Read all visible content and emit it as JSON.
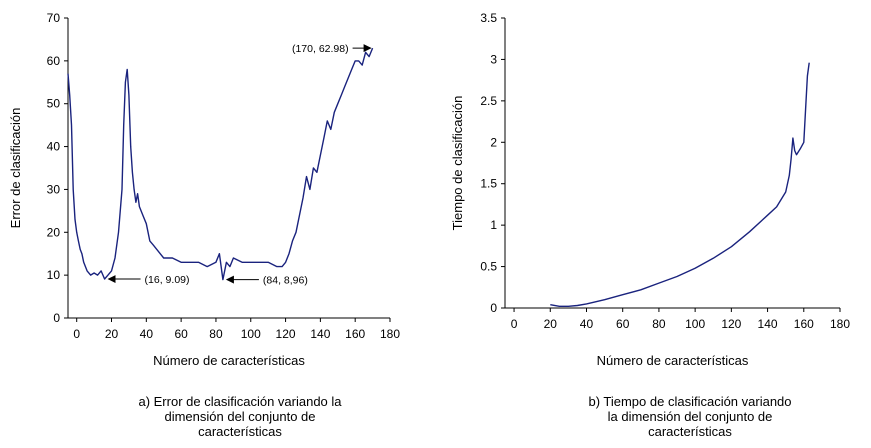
{
  "chart_data": [
    {
      "type": "line",
      "title": "",
      "xlabel": "Número de características",
      "ylabel": "Error de clasificación",
      "xlim": [
        -5,
        180
      ],
      "ylim": [
        0,
        70
      ],
      "xticks": [
        0,
        20,
        40,
        60,
        80,
        100,
        120,
        140,
        160,
        180
      ],
      "yticks": [
        0,
        10,
        20,
        30,
        40,
        50,
        60,
        70
      ],
      "grid": false,
      "line_color": "#1a237e",
      "x": [
        -5,
        -4,
        -3,
        -2,
        -1,
        0,
        1,
        2,
        3,
        4,
        6,
        8,
        10,
        12,
        14,
        16,
        18,
        20,
        22,
        24,
        26,
        27,
        28,
        29,
        30,
        31,
        32,
        33,
        34,
        35,
        36,
        38,
        40,
        42,
        44,
        46,
        48,
        50,
        55,
        60,
        65,
        70,
        75,
        80,
        82,
        84,
        86,
        88,
        90,
        95,
        100,
        105,
        110,
        115,
        118,
        120,
        122,
        124,
        126,
        128,
        130,
        132,
        134,
        136,
        138,
        140,
        142,
        144,
        146,
        148,
        150,
        152,
        154,
        156,
        158,
        160,
        162,
        164,
        166,
        168,
        170
      ],
      "y": [
        57,
        52,
        45,
        30,
        23,
        20,
        18,
        16,
        15,
        13,
        11,
        10,
        10.5,
        10,
        11,
        9.09,
        10,
        11,
        14,
        20,
        30,
        45,
        55,
        58,
        52,
        40,
        34,
        30,
        27,
        29,
        26,
        24,
        22,
        18,
        17,
        16,
        15,
        14,
        14,
        13,
        13,
        13,
        12,
        13,
        15,
        8.96,
        13,
        12,
        14,
        13,
        13,
        13,
        13,
        12,
        12,
        13,
        15,
        18,
        20,
        24,
        28,
        33,
        30,
        35,
        34,
        38,
        42,
        46,
        44,
        48,
        50,
        52,
        54,
        56,
        58,
        60,
        60,
        59,
        62,
        61,
        62.98
      ],
      "annotations": [
        {
          "label": "(16, 9.09)",
          "x": 16,
          "y": 9.09
        },
        {
          "label": "(84, 8,96)",
          "x": 84,
          "y": 8.96
        },
        {
          "label": "(170, 62.98)",
          "x": 170,
          "y": 62.98
        }
      ]
    },
    {
      "type": "line",
      "title": "",
      "xlabel": "Número de características",
      "ylabel": "Tiempo de clasificación",
      "xlim": [
        -5,
        180
      ],
      "ylim": [
        0,
        3.5
      ],
      "xticks": [
        0,
        20,
        40,
        60,
        80,
        100,
        120,
        140,
        160,
        180
      ],
      "yticks": [
        0,
        0.5,
        1,
        1.5,
        2,
        2.5,
        3,
        3.5
      ],
      "ytick_labels": [
        "0",
        "0.5",
        "1",
        "1.5",
        "2",
        "2.5",
        "3",
        "3.5"
      ],
      "grid": false,
      "line_color": "#1a237e",
      "x": [
        20,
        25,
        30,
        35,
        40,
        50,
        60,
        70,
        80,
        90,
        100,
        110,
        120,
        130,
        140,
        145,
        150,
        152,
        153,
        154,
        155,
        156,
        158,
        160,
        161,
        162,
        163
      ],
      "y": [
        0.04,
        0.02,
        0.02,
        0.03,
        0.05,
        0.1,
        0.16,
        0.22,
        0.3,
        0.38,
        0.48,
        0.6,
        0.74,
        0.92,
        1.12,
        1.22,
        1.4,
        1.6,
        1.8,
        2.05,
        1.9,
        1.85,
        1.92,
        2.0,
        2.4,
        2.8,
        2.96
      ]
    }
  ],
  "captions": [
    "a) Error de clasificación variando la\ndimensión del conjunto de\ncaracterísticas",
    "b) Tiempo de clasificación variando\nla dimensión del conjunto de\ncaracterísticas"
  ]
}
